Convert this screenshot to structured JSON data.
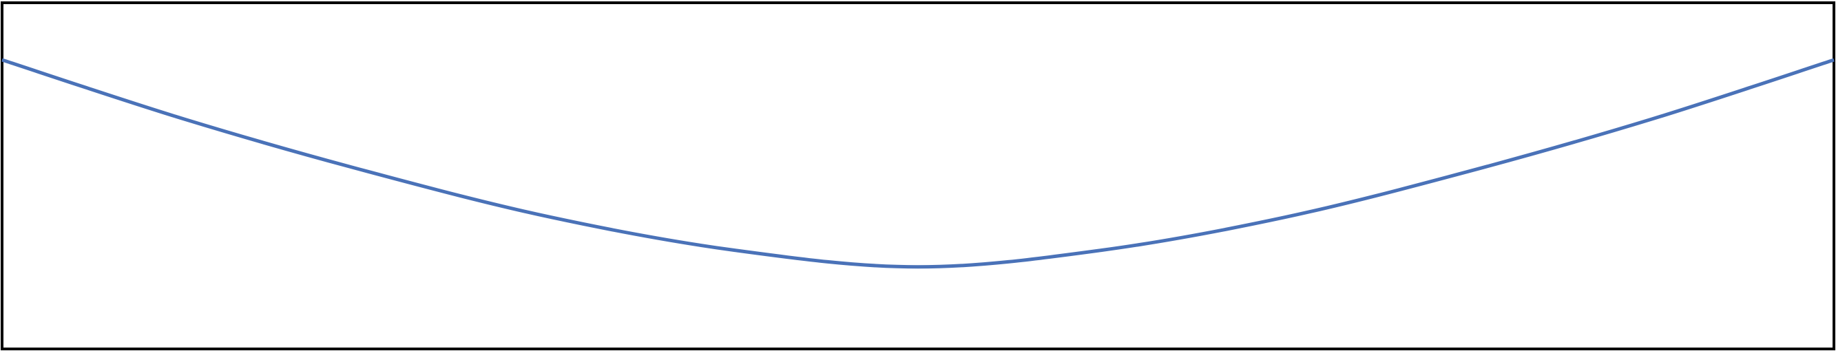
{
  "chart_data": {
    "type": "line",
    "title": "",
    "xlabel": "",
    "ylabel": "",
    "xlim": [
      0,
      1
    ],
    "ylim": [
      0,
      1
    ],
    "grid": false,
    "legend": "none",
    "series": [
      {
        "color": "#4a72b8",
        "x": [
          0.0,
          0.1,
          0.2,
          0.3,
          0.4,
          0.5,
          0.6,
          0.7,
          0.8,
          0.9,
          1.0
        ],
        "y": [
          0.835,
          0.663,
          0.512,
          0.38,
          0.285,
          0.237,
          0.285,
          0.38,
          0.512,
          0.663,
          0.835
        ]
      }
    ]
  }
}
